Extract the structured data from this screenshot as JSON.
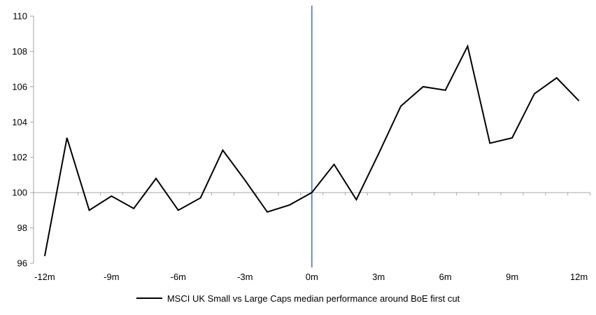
{
  "chart_data": {
    "type": "line",
    "legend": "MSCI UK Small vs Large Caps median performance around BoE first cut",
    "xlabel": "",
    "ylabel": "",
    "x_unit": "months relative to BoE first cut",
    "x_months": [
      -12,
      -11,
      -10,
      -9,
      -8,
      -7,
      -6,
      -5,
      -4,
      -3,
      -2,
      -1,
      0,
      1,
      2,
      3,
      4,
      5,
      6,
      7,
      8,
      9,
      10,
      11,
      12
    ],
    "series": [
      {
        "name": "MSCI UK Small vs Large Caps median performance around BoE first cut",
        "values": [
          96.4,
          103.1,
          99.0,
          99.8,
          99.1,
          100.8,
          99.0,
          99.7,
          102.4,
          100.7,
          98.9,
          99.3,
          100.0,
          101.6,
          99.6,
          102.2,
          104.9,
          106.0,
          105.8,
          108.3,
          102.8,
          103.1,
          105.6,
          106.5,
          105.2
        ]
      }
    ],
    "ylim": [
      96,
      110
    ],
    "y_ticks": [
      96,
      98,
      100,
      102,
      104,
      106,
      108,
      110
    ],
    "x_tick_months": [
      -12,
      -9,
      -6,
      -3,
      0,
      3,
      6,
      9,
      12
    ],
    "x_tick_labels": [
      "-12m",
      "-9m",
      "-6m",
      "-3m",
      "0m",
      "3m",
      "6m",
      "9m",
      "12m"
    ],
    "x_axis_cross_value": 100,
    "event_line_month": 0,
    "grid": false,
    "legend_position": "bottom",
    "colors": {
      "series": "#000000",
      "event_line": "#4f81bd",
      "axis": "#a6a6a6",
      "text": "#000000",
      "background": "#ffffff"
    }
  }
}
